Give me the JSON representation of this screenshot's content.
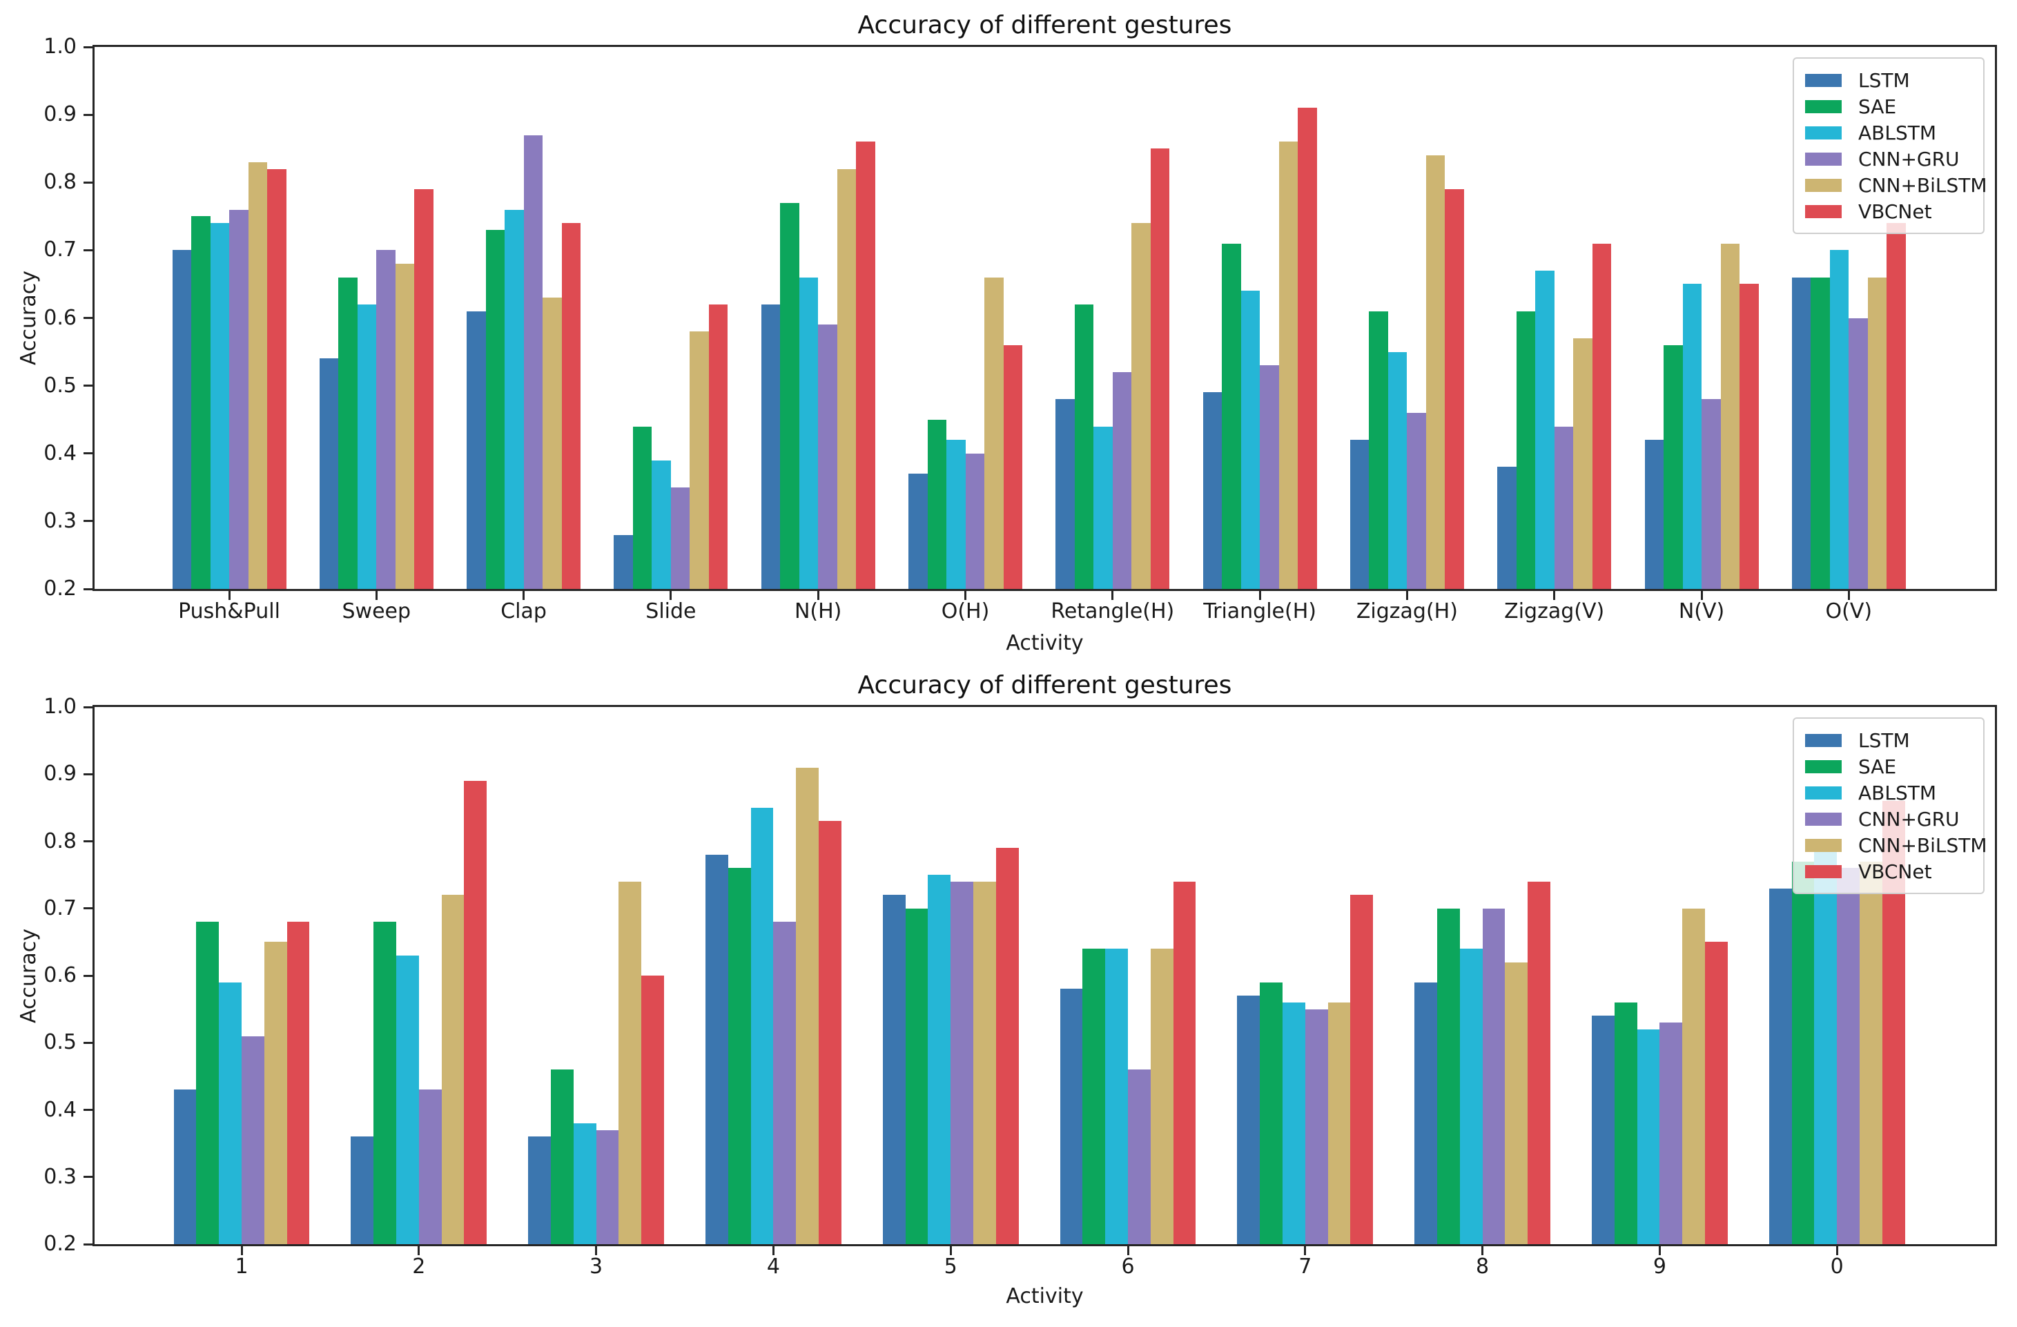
{
  "figure": {
    "background": "#ffffff",
    "axis_color": "#262626"
  },
  "chart_data": [
    {
      "type": "bar",
      "title": "Accuracy of different gestures",
      "xlabel": "Activity",
      "ylabel": "Accuracy",
      "ylim": [
        0.2,
        1.0
      ],
      "yticks": [
        "0.2",
        "0.3",
        "0.4",
        "0.5",
        "0.6",
        "0.7",
        "0.8",
        "0.9",
        "1.0"
      ],
      "grid": false,
      "legend_position": "upper-right",
      "categories": [
        "Push&Pull",
        "Sweep",
        "Clap",
        "Slide",
        "N(H)",
        "O(H)",
        "Retangle(H)",
        "Triangle(H)",
        "Zigzag(H)",
        "Zigzag(V)",
        "N(V)",
        "O(V)"
      ],
      "series": [
        {
          "name": "LSTM",
          "color": "#3b76af",
          "values": [
            0.7,
            0.54,
            0.61,
            0.28,
            0.62,
            0.37,
            0.48,
            0.49,
            0.42,
            0.38,
            0.42,
            0.66
          ]
        },
        {
          "name": "SAE",
          "color": "#0ca65c",
          "values": [
            0.75,
            0.66,
            0.73,
            0.44,
            0.77,
            0.45,
            0.62,
            0.71,
            0.61,
            0.61,
            0.56,
            0.66
          ]
        },
        {
          "name": "ABLSTM",
          "color": "#25b6d6",
          "values": [
            0.74,
            0.62,
            0.76,
            0.39,
            0.66,
            0.42,
            0.44,
            0.64,
            0.55,
            0.67,
            0.65,
            0.7
          ]
        },
        {
          "name": "CNN+GRU",
          "color": "#8a7bbe",
          "values": [
            0.76,
            0.7,
            0.87,
            0.35,
            0.59,
            0.4,
            0.52,
            0.53,
            0.46,
            0.44,
            0.48,
            0.6
          ]
        },
        {
          "name": "CNN+BiLSTM",
          "color": "#cdb572",
          "values": [
            0.83,
            0.68,
            0.63,
            0.58,
            0.82,
            0.66,
            0.74,
            0.86,
            0.84,
            0.57,
            0.71,
            0.66
          ]
        },
        {
          "name": "VBCNet",
          "color": "#de4b52",
          "values": [
            0.82,
            0.79,
            0.74,
            0.62,
            0.86,
            0.56,
            0.85,
            0.91,
            0.79,
            0.71,
            0.65,
            0.74
          ]
        }
      ]
    },
    {
      "type": "bar",
      "title": "Accuracy of different gestures",
      "xlabel": "Activity",
      "ylabel": "Accuracy",
      "ylim": [
        0.2,
        1.0
      ],
      "yticks": [
        "0.2",
        "0.3",
        "0.4",
        "0.5",
        "0.6",
        "0.7",
        "0.8",
        "0.9",
        "1.0"
      ],
      "grid": false,
      "legend_position": "upper-right",
      "categories": [
        "1",
        "2",
        "3",
        "4",
        "5",
        "6",
        "7",
        "8",
        "9",
        "0"
      ],
      "series": [
        {
          "name": "LSTM",
          "color": "#3b76af",
          "values": [
            0.43,
            0.36,
            0.36,
            0.78,
            0.72,
            0.58,
            0.57,
            0.59,
            0.54,
            0.73
          ]
        },
        {
          "name": "SAE",
          "color": "#0ca65c",
          "values": [
            0.68,
            0.68,
            0.46,
            0.76,
            0.7,
            0.64,
            0.59,
            0.7,
            0.56,
            0.77
          ]
        },
        {
          "name": "ABLSTM",
          "color": "#25b6d6",
          "values": [
            0.59,
            0.63,
            0.38,
            0.85,
            0.75,
            0.64,
            0.56,
            0.64,
            0.52,
            0.8
          ]
        },
        {
          "name": "CNN+GRU",
          "color": "#8a7bbe",
          "values": [
            0.51,
            0.43,
            0.37,
            0.68,
            0.74,
            0.46,
            0.55,
            0.7,
            0.53,
            0.76
          ]
        },
        {
          "name": "CNN+BiLSTM",
          "color": "#cdb572",
          "values": [
            0.65,
            0.72,
            0.74,
            0.91,
            0.74,
            0.64,
            0.56,
            0.62,
            0.7,
            0.77
          ]
        },
        {
          "name": "VBCNet",
          "color": "#de4b52",
          "values": [
            0.68,
            0.89,
            0.6,
            0.83,
            0.79,
            0.74,
            0.72,
            0.74,
            0.65,
            0.86
          ]
        }
      ]
    }
  ]
}
